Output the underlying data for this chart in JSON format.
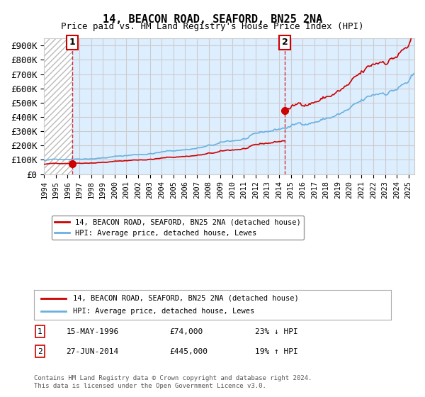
{
  "title": "14, BEACON ROAD, SEAFORD, BN25 2NA",
  "subtitle": "Price paid vs. HM Land Registry's House Price Index (HPI)",
  "sale1_date": 1996.38,
  "sale1_price": 74000,
  "sale2_date": 2014.49,
  "sale2_price": 445000,
  "ylim": [
    0,
    950000
  ],
  "xlim": [
    1994,
    2025.5
  ],
  "yticks": [
    0,
    100000,
    200000,
    300000,
    400000,
    500000,
    600000,
    700000,
    800000,
    900000
  ],
  "ytick_labels": [
    "£0",
    "£100K",
    "£200K",
    "£300K",
    "£400K",
    "£500K",
    "£600K",
    "£700K",
    "£800K",
    "£900K"
  ],
  "hpi_color": "#6ab0e0",
  "price_color": "#cc0000",
  "hatch_color": "#cccccc",
  "grid_color": "#cccccc",
  "bg_color": "#ddeeff",
  "legend_label1": "14, BEACON ROAD, SEAFORD, BN25 2NA (detached house)",
  "legend_label2": "HPI: Average price, detached house, Lewes",
  "note1_idx": "1",
  "note1_date": "15-MAY-1996",
  "note1_price": "£74,000",
  "note1_hpi": "23% ↓ HPI",
  "note2_idx": "2",
  "note2_date": "27-JUN-2014",
  "note2_price": "£445,000",
  "note2_hpi": "19% ↑ HPI",
  "footer": "Contains HM Land Registry data © Crown copyright and database right 2024.\nThis data is licensed under the Open Government Licence v3.0."
}
